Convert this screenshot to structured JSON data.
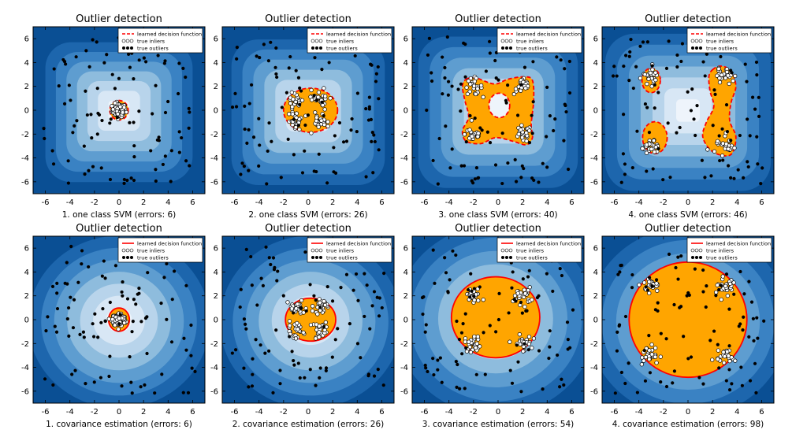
{
  "figure": {
    "colors": {
      "contour_levels": [
        "#0a4f94",
        "#1d66ad",
        "#3a82c3",
        "#5e9dd0",
        "#8ebcdd",
        "#b8d4eb",
        "#d8e7f5",
        "#eef4fb"
      ],
      "inlier_region": "#ffa500",
      "boundary": "#ff0000",
      "outlier_marker": "#000000",
      "inlier_marker": "#ffffff"
    },
    "legend": {
      "decision": "learned decision function",
      "inliers": "true inliers",
      "outliers": "true outliers"
    }
  },
  "chart_data": [
    {
      "type": "scatter",
      "title": "Outlier detection",
      "xlabel": "1. one class SVM (errors: 6)",
      "method": "svm",
      "xlim": [
        -7,
        7
      ],
      "ylim": [
        -7,
        7
      ],
      "xticks": [
        "-6",
        "-4",
        "-2",
        "0",
        "2",
        "4",
        "6"
      ],
      "yticks": [
        "-6",
        "-4",
        "-2",
        "0",
        "2",
        "4",
        "6"
      ],
      "clusters": [
        [
          0,
          0
        ]
      ],
      "errors": 6,
      "boundary_style": "dashed",
      "regions": [
        {
          "kind": "ellipse",
          "cx": 0,
          "cy": 0,
          "rx": 0.75,
          "ry": 0.8
        }
      ]
    },
    {
      "type": "scatter",
      "title": "Outlier detection",
      "xlabel": "2. one class SVM (errors: 26)",
      "method": "svm",
      "xlim": [
        -7,
        7
      ],
      "ylim": [
        -7,
        7
      ],
      "xticks": [
        "-6",
        "-4",
        "-2",
        "0",
        "2",
        "4",
        "6"
      ],
      "yticks": [
        "-6",
        "-4",
        "-2",
        "0",
        "2",
        "4",
        "6"
      ],
      "clusters": [
        [
          -1,
          0.9
        ],
        [
          1,
          0.9
        ],
        [
          -1,
          -0.9
        ],
        [
          1,
          -0.9
        ]
      ],
      "errors": 26,
      "boundary_style": "dashed",
      "regions": [
        {
          "kind": "ellipse",
          "cx": 0.2,
          "cy": 0,
          "rx": 2.2,
          "ry": 1.8
        }
      ]
    },
    {
      "type": "scatter",
      "title": "Outlier detection",
      "xlabel": "3. one class SVM (errors: 40)",
      "method": "svm",
      "xlim": [
        -7,
        7
      ],
      "ylim": [
        -7,
        7
      ],
      "xticks": [
        "-6",
        "-4",
        "-2",
        "0",
        "2",
        "4",
        "6"
      ],
      "yticks": [
        "-6",
        "-4",
        "-2",
        "0",
        "2",
        "4",
        "6"
      ],
      "clusters": [
        [
          -2,
          2
        ],
        [
          2,
          2
        ],
        [
          -2,
          -2
        ],
        [
          2,
          -2
        ]
      ],
      "errors": 40,
      "boundary_style": "dashed",
      "regions": [
        {
          "kind": "path",
          "points": [
            [
              -2.6,
              2.6
            ],
            [
              -1.8,
              2.7
            ],
            [
              -0.3,
              2.2
            ],
            [
              0.8,
              2.6
            ],
            [
              2.1,
              2.8
            ],
            [
              2.8,
              2.5
            ],
            [
              2.9,
              0.8
            ],
            [
              2.7,
              -1.2
            ],
            [
              2.8,
              -2.3
            ],
            [
              2.3,
              -2.9
            ],
            [
              1.2,
              -2.6
            ],
            [
              -0.2,
              -2.3
            ],
            [
              -1.4,
              -2.8
            ],
            [
              -2.6,
              -2.6
            ],
            [
              -2.9,
              -1.7
            ],
            [
              -2.4,
              -0.6
            ],
            [
              -2.7,
              0.8
            ],
            [
              -2.9,
              2.0
            ]
          ]
        },
        {
          "kind": "hole",
          "cx": 0.1,
          "cy": 0.4,
          "rx": 0.85,
          "ry": 1.0
        }
      ]
    },
    {
      "type": "scatter",
      "title": "Outlier detection",
      "xlabel": "4. one class SVM (errors: 46)",
      "method": "svm",
      "xlim": [
        -7,
        7
      ],
      "ylim": [
        -7,
        7
      ],
      "xticks": [
        "-6",
        "-4",
        "-2",
        "0",
        "2",
        "4",
        "6"
      ],
      "yticks": [
        "-6",
        "-4",
        "-2",
        "0",
        "2",
        "4",
        "6"
      ],
      "clusters": [
        [
          -3,
          3
        ],
        [
          3,
          3
        ],
        [
          -3,
          -3
        ],
        [
          3,
          -3
        ]
      ],
      "errors": 46,
      "boundary_style": "dashed",
      "regions": [
        {
          "kind": "ellipse",
          "cx": -3.0,
          "cy": 2.5,
          "rx": 0.75,
          "ry": 1.0
        },
        {
          "kind": "ellipse",
          "cx": -2.7,
          "cy": -2.3,
          "rx": 1.0,
          "ry": 1.3
        },
        {
          "kind": "path",
          "points": [
            [
              2.0,
              3.4
            ],
            [
              2.7,
              3.7
            ],
            [
              3.5,
              3.3
            ],
            [
              3.9,
              2.0
            ],
            [
              3.5,
              0.6
            ],
            [
              3.4,
              -0.9
            ],
            [
              3.9,
              -2.2
            ],
            [
              3.6,
              -3.6
            ],
            [
              2.8,
              -3.8
            ],
            [
              1.8,
              -3.3
            ],
            [
              1.2,
              -2.2
            ],
            [
              1.5,
              -1.0
            ],
            [
              2.1,
              0.3
            ],
            [
              1.8,
              1.6
            ],
            [
              1.7,
              2.8
            ]
          ]
        }
      ]
    },
    {
      "type": "scatter",
      "title": "Outlier detection",
      "xlabel": "1. covariance estimation (errors: 6)",
      "method": "cov",
      "xlim": [
        -7,
        7
      ],
      "ylim": [
        -7,
        7
      ],
      "xticks": [
        "-6",
        "-4",
        "-2",
        "0",
        "2",
        "4",
        "6"
      ],
      "yticks": [
        "-6",
        "-4",
        "-2",
        "0",
        "2",
        "4",
        "6"
      ],
      "clusters": [
        [
          0,
          0
        ]
      ],
      "errors": 6,
      "boundary_style": "solid",
      "regions": [
        {
          "kind": "ellipse",
          "cx": 0,
          "cy": 0,
          "rx": 0.85,
          "ry": 0.95
        }
      ]
    },
    {
      "type": "scatter",
      "title": "Outlier detection",
      "xlabel": "2. covariance estimation (errors: 26)",
      "method": "cov",
      "xlim": [
        -7,
        7
      ],
      "ylim": [
        -7,
        7
      ],
      "xticks": [
        "-6",
        "-4",
        "-2",
        "0",
        "2",
        "4",
        "6"
      ],
      "yticks": [
        "-6",
        "-4",
        "-2",
        "0",
        "2",
        "4",
        "6"
      ],
      "clusters": [
        [
          -1,
          0.9
        ],
        [
          1,
          0.9
        ],
        [
          -1,
          -0.9
        ],
        [
          1,
          -0.9
        ]
      ],
      "errors": 26,
      "boundary_style": "solid",
      "regions": [
        {
          "kind": "ellipse",
          "cx": 0.2,
          "cy": 0,
          "rx": 2.05,
          "ry": 1.75
        }
      ]
    },
    {
      "type": "scatter",
      "title": "Outlier detection",
      "xlabel": "3. covariance estimation (errors: 54)",
      "method": "cov",
      "xlim": [
        -7,
        7
      ],
      "ylim": [
        -7,
        7
      ],
      "xticks": [
        "-6",
        "-4",
        "-2",
        "0",
        "2",
        "4",
        "6"
      ],
      "yticks": [
        "-6",
        "-4",
        "-2",
        "0",
        "2",
        "4",
        "6"
      ],
      "clusters": [
        [
          -2,
          2
        ],
        [
          2,
          2
        ],
        [
          -2,
          -2
        ],
        [
          2,
          -2
        ]
      ],
      "errors": 54,
      "boundary_style": "solid",
      "regions": [
        {
          "kind": "ellipse",
          "cx": -0.2,
          "cy": 0.2,
          "rx": 3.6,
          "ry": 3.3
        }
      ]
    },
    {
      "type": "scatter",
      "title": "Outlier detection",
      "xlabel": "4. covariance estimation (errors: 98)",
      "method": "cov",
      "xlim": [
        -7,
        7
      ],
      "ylim": [
        -7,
        7
      ],
      "xticks": [
        "-6",
        "-4",
        "-2",
        "0",
        "2",
        "4",
        "6"
      ],
      "yticks": [
        "-6",
        "-4",
        "-2",
        "0",
        "2",
        "4",
        "6"
      ],
      "clusters": [
        [
          -3,
          3
        ],
        [
          3,
          3
        ],
        [
          -3,
          -3
        ],
        [
          3,
          -3
        ]
      ],
      "errors": 98,
      "boundary_style": "solid",
      "regions": [
        {
          "kind": "ellipse",
          "cx": 0,
          "cy": 0,
          "rx": 4.8,
          "ry": 4.7
        }
      ]
    }
  ]
}
